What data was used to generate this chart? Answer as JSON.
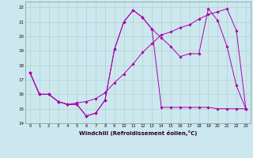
{
  "xlabel": "Windchill (Refroidissement éolien,°C)",
  "xlim": [
    -0.5,
    23.5
  ],
  "ylim": [
    14,
    22.4
  ],
  "xticks": [
    0,
    1,
    2,
    3,
    4,
    5,
    6,
    7,
    8,
    9,
    10,
    11,
    12,
    13,
    14,
    15,
    16,
    17,
    18,
    19,
    20,
    21,
    22,
    23
  ],
  "yticks": [
    14,
    15,
    16,
    17,
    18,
    19,
    20,
    21,
    22
  ],
  "background_color": "#cce8ee",
  "grid_color": "#aacccc",
  "line_color": "#aa00aa",
  "hours": [
    0,
    1,
    2,
    3,
    4,
    5,
    6,
    7,
    8,
    9,
    10,
    11,
    12,
    13,
    14,
    15,
    16,
    17,
    18,
    19,
    20,
    21,
    22,
    23
  ],
  "line1": [
    17.5,
    16.0,
    16.0,
    15.5,
    15.3,
    15.3,
    14.5,
    14.7,
    15.6,
    19.1,
    21.0,
    21.8,
    21.3,
    20.5,
    19.9,
    19.3,
    18.6,
    18.8,
    18.8,
    21.9,
    21.1,
    19.3,
    16.6,
    15.0
  ],
  "line2_x": [
    0,
    1,
    2,
    3,
    4,
    5,
    6,
    7,
    8,
    9,
    10,
    11,
    12,
    13,
    14,
    15,
    16,
    17,
    18,
    19,
    20,
    21,
    22,
    23
  ],
  "line2": [
    17.5,
    16.0,
    16.0,
    15.5,
    15.3,
    15.3,
    14.5,
    14.7,
    15.6,
    19.1,
    21.0,
    21.8,
    21.3,
    20.5,
    15.1,
    15.1,
    15.1,
    15.1,
    15.1,
    15.1,
    15.0,
    15.0,
    15.0,
    15.0
  ],
  "line3": [
    17.5,
    16.0,
    16.0,
    15.5,
    15.3,
    15.4,
    15.5,
    15.7,
    16.1,
    16.8,
    17.4,
    18.1,
    18.9,
    19.5,
    20.1,
    20.3,
    20.6,
    20.8,
    21.2,
    21.5,
    21.7,
    21.9,
    20.4,
    15.0
  ]
}
